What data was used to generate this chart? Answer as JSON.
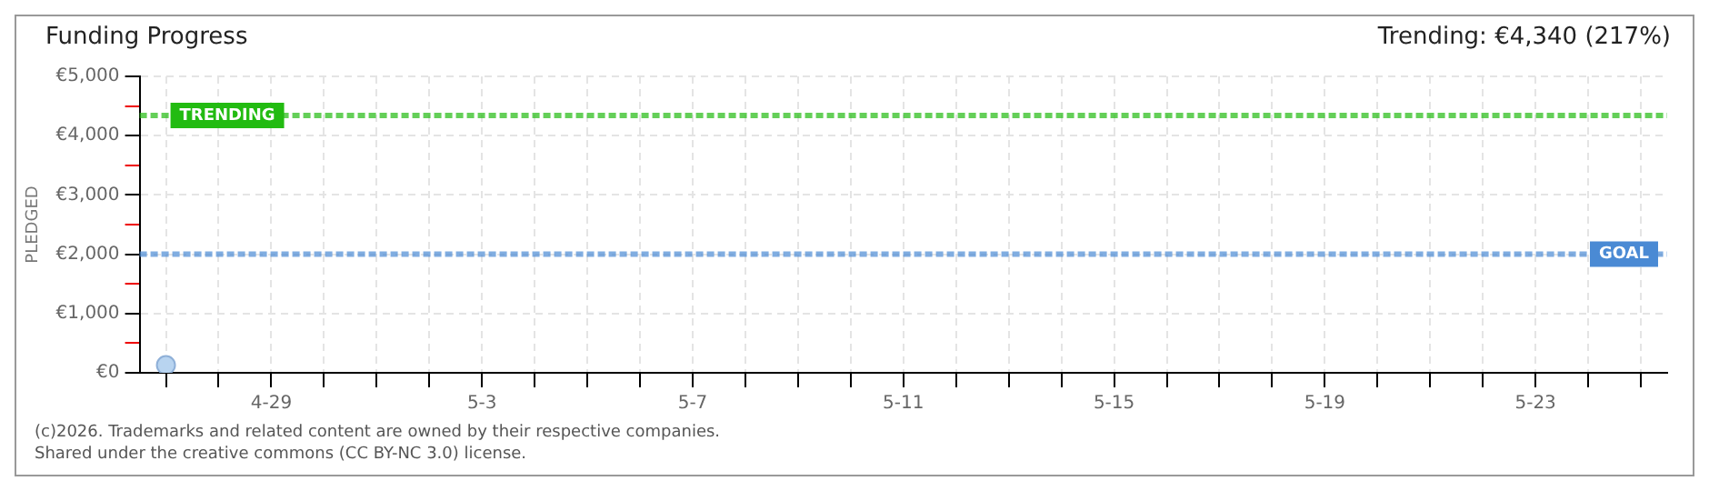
{
  "chart_data": {
    "type": "scatter",
    "title": "Funding Progress",
    "ylabel": "PLEDGED",
    "annotations": [
      "Trending: €4,340 (217%)",
      "(c)2026. Trademarks and related content are owned by their respective companies.",
      "Shared under the creative commons (CC BY-NC 3.0) license."
    ],
    "categories": [
      null,
      null,
      "4-29",
      null,
      null,
      null,
      "5-3",
      null,
      null,
      null,
      "5-7",
      null,
      null,
      null,
      "5-11",
      null,
      null,
      null,
      "5-15",
      null,
      null,
      null,
      "5-19",
      null,
      null,
      null,
      "5-23",
      null,
      null
    ],
    "series": [
      {
        "color": "#b8d4f0",
        "values": [
          130,
          null,
          null,
          null,
          null,
          null,
          null,
          null,
          null,
          null,
          null,
          null,
          null,
          null,
          null,
          null,
          null,
          null,
          null,
          null,
          null,
          null,
          null,
          null,
          null,
          null,
          null,
          null,
          null
        ]
      }
    ],
    "ylim": [
      0,
      5000
    ],
    "yticks": [
      {
        "value": 0,
        "label": "€0"
      },
      {
        "value": 500,
        "label": null
      },
      {
        "value": 1000,
        "label": "€1,000"
      },
      {
        "value": 1500,
        "label": null
      },
      {
        "value": 2000,
        "label": "€2,000"
      },
      {
        "value": 2500,
        "label": null
      },
      {
        "value": 3000,
        "label": "€3,000"
      },
      {
        "value": 3500,
        "label": null
      },
      {
        "value": 4000,
        "label": "€4,000"
      },
      {
        "value": 4500,
        "label": null
      },
      {
        "value": 5000,
        "label": "€5,000"
      }
    ],
    "ref_lines": [
      {
        "axis": "y",
        "value": 4340,
        "label": "TRENDING",
        "color": "#22bb11",
        "line_style": "dotted"
      },
      {
        "axis": "y",
        "value": 2000,
        "label": "GOAL",
        "color": "#4a8ad4",
        "line_style": "dotted"
      }
    ],
    "grid": true,
    "legend": false,
    "marker": "circle"
  }
}
